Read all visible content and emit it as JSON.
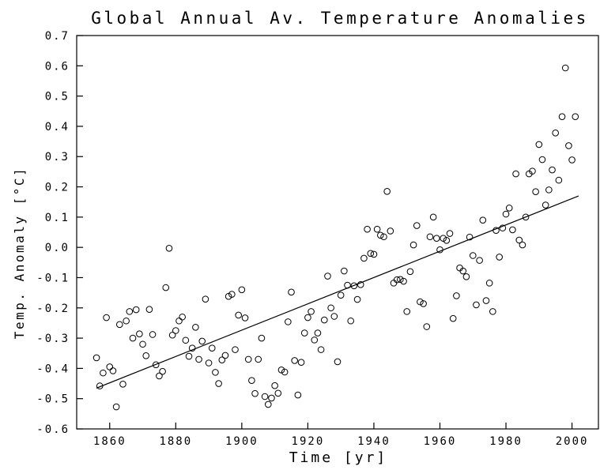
{
  "chart_data": {
    "type": "scatter",
    "title": "Global Annual Av. Temperature Anomalies",
    "xlabel": "Time [yr]",
    "ylabel": "Temp. Anomaly [°C]",
    "xlim": [
      1850,
      2008
    ],
    "ylim": [
      -0.6,
      0.7
    ],
    "xticks": [
      1860,
      1880,
      1900,
      1920,
      1940,
      1960,
      1980,
      2000
    ],
    "yticks": [
      -0.6,
      -0.5,
      -0.4,
      -0.3,
      -0.2,
      -0.1,
      0.0,
      0.1,
      0.2,
      0.3,
      0.4,
      0.5,
      0.6,
      0.7
    ],
    "ytick_labels": [
      "-0.6",
      "-0.5",
      "-0.4",
      "-0.3",
      "-0.2",
      "-0.1",
      "0.0",
      "0.1",
      "0.2",
      "0.3",
      "0.4",
      "0.5",
      "0.6",
      "0.7"
    ],
    "grid": false,
    "trend_line": {
      "x": [
        1856,
        2002
      ],
      "y": [
        -0.465,
        0.17
      ]
    },
    "series": [
      {
        "points": [
          [
            1856,
            -0.365
          ],
          [
            1857,
            -0.458
          ],
          [
            1858,
            -0.415
          ],
          [
            1859,
            -0.232
          ],
          [
            1860,
            -0.395
          ],
          [
            1861,
            -0.408
          ],
          [
            1862,
            -0.527
          ],
          [
            1863,
            -0.255
          ],
          [
            1864,
            -0.452
          ],
          [
            1865,
            -0.243
          ],
          [
            1866,
            -0.212
          ],
          [
            1867,
            -0.3
          ],
          [
            1868,
            -0.206
          ],
          [
            1869,
            -0.286
          ],
          [
            1870,
            -0.32
          ],
          [
            1871,
            -0.358
          ],
          [
            1872,
            -0.205
          ],
          [
            1873,
            -0.288
          ],
          [
            1874,
            -0.388
          ],
          [
            1875,
            -0.425
          ],
          [
            1876,
            -0.41
          ],
          [
            1877,
            -0.133
          ],
          [
            1878,
            -0.003
          ],
          [
            1879,
            -0.29
          ],
          [
            1880,
            -0.275
          ],
          [
            1881,
            -0.243
          ],
          [
            1882,
            -0.23
          ],
          [
            1883,
            -0.307
          ],
          [
            1884,
            -0.36
          ],
          [
            1885,
            -0.333
          ],
          [
            1886,
            -0.264
          ],
          [
            1887,
            -0.37
          ],
          [
            1888,
            -0.31
          ],
          [
            1889,
            -0.171
          ],
          [
            1890,
            -0.382
          ],
          [
            1891,
            -0.333
          ],
          [
            1892,
            -0.413
          ],
          [
            1893,
            -0.45
          ],
          [
            1894,
            -0.372
          ],
          [
            1895,
            -0.357
          ],
          [
            1896,
            -0.162
          ],
          [
            1897,
            -0.155
          ],
          [
            1898,
            -0.338
          ],
          [
            1899,
            -0.224
          ],
          [
            1900,
            -0.14
          ],
          [
            1901,
            -0.233
          ],
          [
            1902,
            -0.37
          ],
          [
            1903,
            -0.44
          ],
          [
            1904,
            -0.483
          ],
          [
            1905,
            -0.37
          ],
          [
            1906,
            -0.3
          ],
          [
            1907,
            -0.493
          ],
          [
            1908,
            -0.519
          ],
          [
            1909,
            -0.498
          ],
          [
            1910,
            -0.457
          ],
          [
            1911,
            -0.482
          ],
          [
            1912,
            -0.405
          ],
          [
            1913,
            -0.412
          ],
          [
            1914,
            -0.246
          ],
          [
            1915,
            -0.148
          ],
          [
            1916,
            -0.374
          ],
          [
            1917,
            -0.488
          ],
          [
            1918,
            -0.38
          ],
          [
            1919,
            -0.283
          ],
          [
            1920,
            -0.232
          ],
          [
            1921,
            -0.212
          ],
          [
            1922,
            -0.306
          ],
          [
            1923,
            -0.283
          ],
          [
            1924,
            -0.338
          ],
          [
            1925,
            -0.24
          ],
          [
            1926,
            -0.095
          ],
          [
            1927,
            -0.2
          ],
          [
            1928,
            -0.228
          ],
          [
            1929,
            -0.378
          ],
          [
            1930,
            -0.158
          ],
          [
            1931,
            -0.078
          ],
          [
            1932,
            -0.125
          ],
          [
            1933,
            -0.243
          ],
          [
            1934,
            -0.127
          ],
          [
            1935,
            -0.172
          ],
          [
            1936,
            -0.123
          ],
          [
            1937,
            -0.036
          ],
          [
            1938,
            0.06
          ],
          [
            1939,
            -0.02
          ],
          [
            1940,
            -0.023
          ],
          [
            1941,
            0.06
          ],
          [
            1942,
            0.04
          ],
          [
            1943,
            0.035
          ],
          [
            1944,
            0.185
          ],
          [
            1945,
            0.054
          ],
          [
            1946,
            -0.118
          ],
          [
            1947,
            -0.107
          ],
          [
            1948,
            -0.106
          ],
          [
            1949,
            -0.112
          ],
          [
            1950,
            -0.212
          ],
          [
            1951,
            -0.08
          ],
          [
            1952,
            0.008
          ],
          [
            1953,
            0.072
          ],
          [
            1954,
            -0.18
          ],
          [
            1955,
            -0.186
          ],
          [
            1956,
            -0.262
          ],
          [
            1957,
            0.035
          ],
          [
            1958,
            0.1
          ],
          [
            1959,
            0.03
          ],
          [
            1960,
            -0.008
          ],
          [
            1961,
            0.03
          ],
          [
            1962,
            0.023
          ],
          [
            1963,
            0.046
          ],
          [
            1964,
            -0.235
          ],
          [
            1965,
            -0.16
          ],
          [
            1966,
            -0.068
          ],
          [
            1967,
            -0.078
          ],
          [
            1968,
            -0.097
          ],
          [
            1969,
            0.034
          ],
          [
            1970,
            -0.027
          ],
          [
            1971,
            -0.19
          ],
          [
            1972,
            -0.043
          ],
          [
            1973,
            0.09
          ],
          [
            1974,
            -0.176
          ],
          [
            1975,
            -0.118
          ],
          [
            1976,
            -0.212
          ],
          [
            1977,
            0.056
          ],
          [
            1978,
            -0.032
          ],
          [
            1979,
            0.064
          ],
          [
            1980,
            0.11
          ],
          [
            1981,
            0.13
          ],
          [
            1982,
            0.058
          ],
          [
            1983,
            0.243
          ],
          [
            1984,
            0.024
          ],
          [
            1985,
            0.008
          ],
          [
            1986,
            0.1
          ],
          [
            1987,
            0.243
          ],
          [
            1988,
            0.252
          ],
          [
            1989,
            0.184
          ],
          [
            1990,
            0.34
          ],
          [
            1991,
            0.29
          ],
          [
            1992,
            0.14
          ],
          [
            1993,
            0.19
          ],
          [
            1994,
            0.256
          ],
          [
            1995,
            0.378
          ],
          [
            1996,
            0.222
          ],
          [
            1997,
            0.432
          ],
          [
            1998,
            0.593
          ],
          [
            1999,
            0.336
          ],
          [
            2000,
            0.289
          ],
          [
            2001,
            0.432
          ]
        ]
      }
    ]
  }
}
